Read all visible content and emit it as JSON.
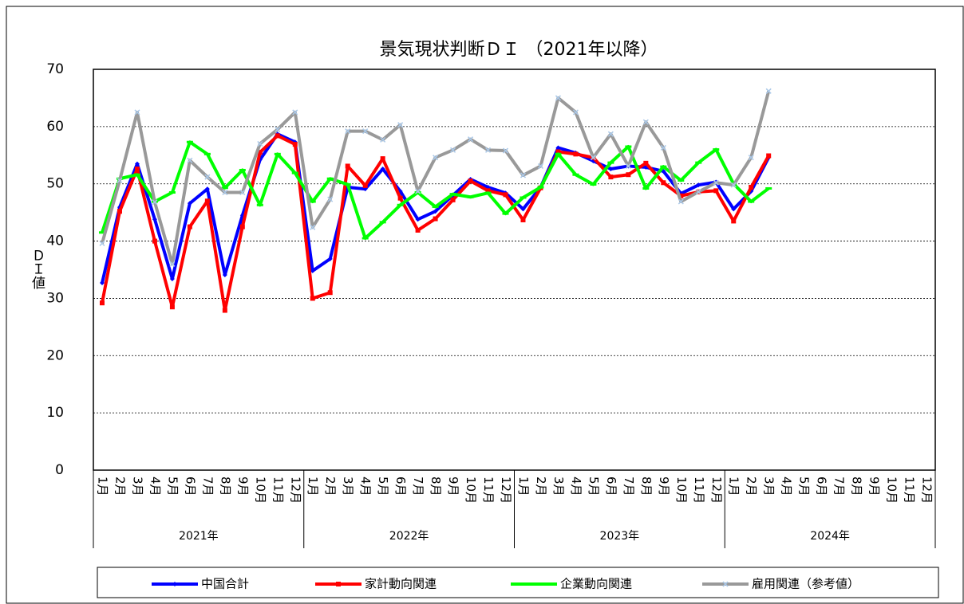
{
  "chart_data": {
    "type": "line",
    "title": "景気現状判断ＤＩ （2021年以降）",
    "y_label": "ＤＩ値",
    "categories": [
      "1月",
      "2月",
      "3月",
      "4月",
      "5月",
      "6月",
      "7月",
      "8月",
      "9月",
      "10月",
      "11月",
      "12月",
      "1月",
      "2月",
      "3月",
      "4月",
      "5月",
      "6月",
      "7月",
      "8月",
      "9月",
      "10月",
      "11月",
      "12月",
      "1月",
      "2月",
      "3月",
      "4月",
      "5月",
      "6月",
      "7月",
      "8月",
      "9月",
      "10月",
      "11月",
      "12月",
      "1月",
      "2月",
      "3月",
      "4月",
      "5月",
      "6月",
      "7月",
      "8月",
      "9月",
      "10月",
      "11月",
      "12月"
    ],
    "x_groups": [
      "2021年",
      "2022年",
      "2023年",
      "2024年"
    ],
    "ylim": [
      0,
      70
    ],
    "yticks": [
      0,
      10,
      20,
      30,
      40,
      50,
      60,
      70
    ],
    "grid": true,
    "series": [
      {
        "name": "中国合計",
        "color": "#0000ff",
        "marker": "diamond",
        "values": [
          32.7,
          45.9,
          53.5,
          43.8,
          33.4,
          46.6,
          49.1,
          34.1,
          44.5,
          54.2,
          58.7,
          57.3,
          34.8,
          36.9,
          49.4,
          49.1,
          52.6,
          48.7,
          43.8,
          45.2,
          48.0,
          50.8,
          49.4,
          48.4,
          45.6,
          49.4,
          56.3,
          55.4,
          54.0,
          52.6,
          53.1,
          52.9,
          52.2,
          48.3,
          49.8,
          50.3,
          45.6,
          48.7,
          54.6,
          null,
          null,
          null,
          null,
          null,
          null,
          null,
          null,
          null
        ]
      },
      {
        "name": "家計動向関連",
        "color": "#ff0000",
        "marker": "square",
        "values": [
          29.2,
          45.2,
          52.6,
          40.0,
          28.5,
          42.5,
          47.0,
          27.9,
          42.5,
          55.5,
          58.4,
          56.9,
          30.0,
          31.0,
          53.1,
          49.7,
          54.4,
          47.5,
          41.9,
          43.9,
          47.2,
          50.5,
          48.8,
          48.1,
          43.7,
          49.3,
          55.6,
          55.2,
          54.6,
          51.2,
          51.6,
          53.6,
          50.2,
          47.9,
          48.6,
          48.8,
          43.5,
          49.4,
          54.9,
          null,
          null,
          null,
          null,
          null,
          null,
          null,
          null,
          null
        ]
      },
      {
        "name": "企業動向関連",
        "color": "#00ff00",
        "marker": "dash",
        "values": [
          41.5,
          50.9,
          51.6,
          46.9,
          48.5,
          57.3,
          55.2,
          49.3,
          52.4,
          46.3,
          55.2,
          51.9,
          46.9,
          50.9,
          49.9,
          40.5,
          43.3,
          46.3,
          48.5,
          46.0,
          48.2,
          47.7,
          48.4,
          44.8,
          47.6,
          49.4,
          55.2,
          51.6,
          49.9,
          53.7,
          56.5,
          49.2,
          53.0,
          50.6,
          53.7,
          56.0,
          50.0,
          46.9,
          49.2,
          null,
          null,
          null,
          null,
          null,
          null,
          null,
          null,
          null
        ]
      },
      {
        "name": "雇用関連（参考値）",
        "color": "#999999",
        "marker": "x",
        "values": [
          39.6,
          50.6,
          62.5,
          46.8,
          36.0,
          54.1,
          51.2,
          48.5,
          48.5,
          57.0,
          59.5,
          62.5,
          42.4,
          47.3,
          59.2,
          59.2,
          57.7,
          60.3,
          48.7,
          54.6,
          55.9,
          57.8,
          55.9,
          55.8,
          51.5,
          53.1,
          65.0,
          62.5,
          54.6,
          58.7,
          53.1,
          60.8,
          56.3,
          46.9,
          48.6,
          50.2,
          49.8,
          54.6,
          66.2,
          null,
          null,
          null,
          null,
          null,
          null,
          null,
          null,
          null
        ]
      }
    ]
  }
}
